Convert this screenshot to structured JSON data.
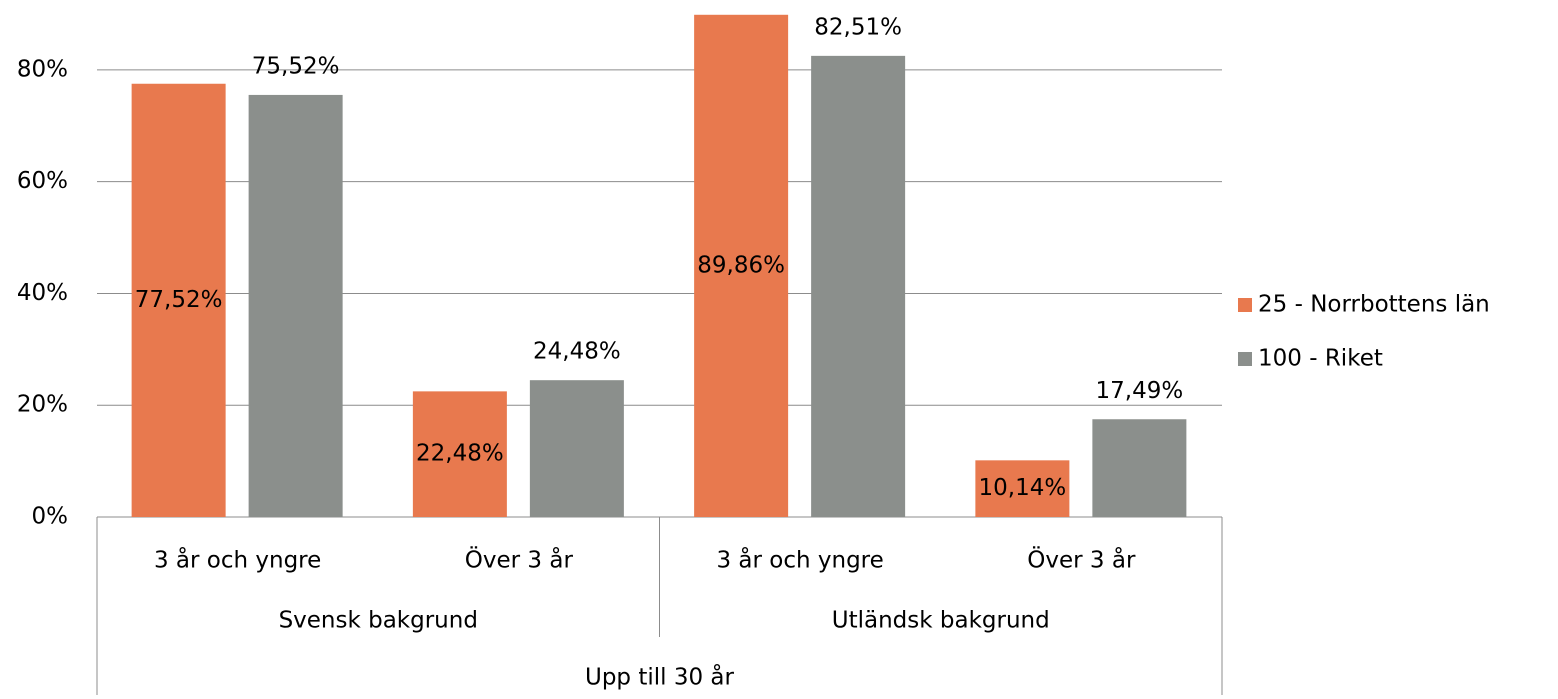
{
  "chart_data": {
    "type": "bar",
    "categories": [
      "3 år och yngre",
      "Över 3 år",
      "3 år och yngre",
      "Över 3 år"
    ],
    "groups": [
      "Svensk bakgrund",
      "Utländsk bakgrund"
    ],
    "supergroup": "Upp till 30 år",
    "series": [
      {
        "name": "25 - Norrbottens län",
        "color": "#e8794e",
        "values": [
          77.52,
          22.48,
          89.86,
          10.14
        ],
        "value_labels": [
          "77,52%",
          "22,48%",
          "89,86%",
          "10,14%"
        ]
      },
      {
        "name": "100 - Riket",
        "color": "#8b8f8c",
        "values": [
          75.52,
          24.48,
          82.51,
          17.49
        ],
        "value_labels": [
          "75,52%",
          "24,48%",
          "82,51%",
          "17,49%"
        ]
      }
    ],
    "ylim": [
      0,
      90
    ],
    "yticks": [
      {
        "value": 0,
        "label": "0%"
      },
      {
        "value": 20,
        "label": "20%"
      },
      {
        "value": 40,
        "label": "40%"
      },
      {
        "value": 60,
        "label": "60%"
      },
      {
        "value": 80,
        "label": "80%"
      }
    ],
    "grid": true,
    "legend": "right"
  }
}
